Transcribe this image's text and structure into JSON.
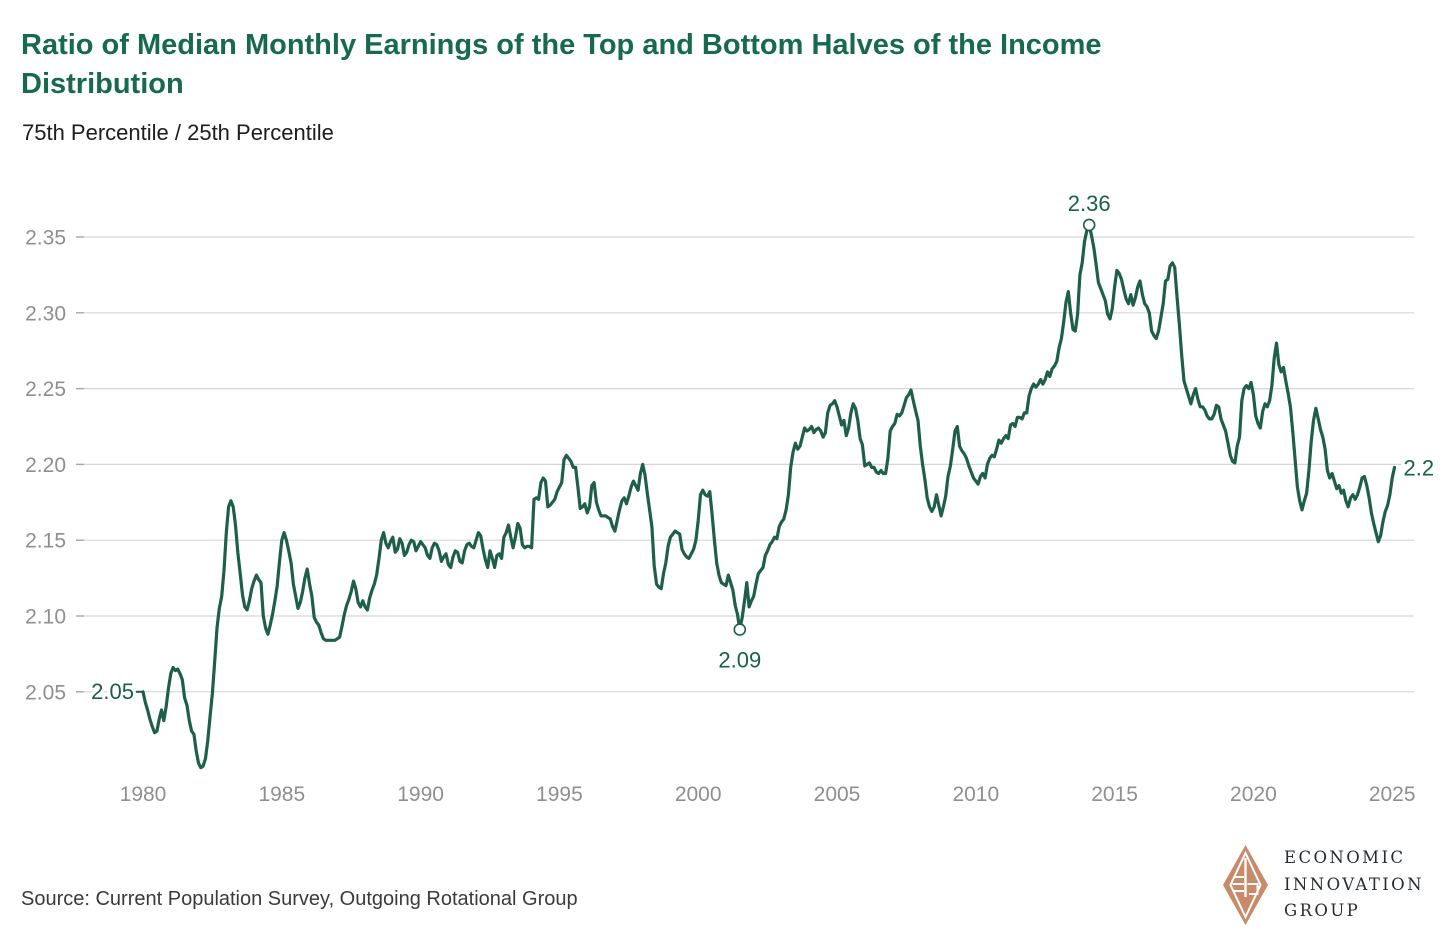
{
  "header": {
    "title": "Ratio of Median Monthly Earnings of the Top and Bottom Halves of the Income Distribution",
    "title_line1": "Ratio of Median Monthly Earnings of the Top and Bottom Halves of the Income",
    "title_line2": "Distribution",
    "subtitle": "75th Percentile / 25th Percentile"
  },
  "footer": {
    "source": "Source: Current Population Survey, Outgoing Rotational Group",
    "logo": {
      "line1": "ECONOMIC",
      "line2": "INNOVATION",
      "line3": "GROUP",
      "icon": "eig-diamond-monogram-icon",
      "diamond_color": "#c98a6a",
      "text_color": "#262c33"
    }
  },
  "colors": {
    "title_green": "#17694f",
    "line_green": "#1e5f4b",
    "annotation_green": "#1a5f4a",
    "gridline": "#d6d6d6",
    "tick_stub": "#a9a9a9",
    "axis_label": "#8f8f8f",
    "subtitle_text": "#1d1d1d",
    "source_text": "#3b3b3b"
  },
  "chart_data": {
    "type": "line",
    "title": "Ratio of Median Monthly Earnings of the Top and Bottom Halves of the Income Distribution",
    "subtitle": "75th Percentile / 25th Percentile",
    "xlabel": "",
    "ylabel": "",
    "grid": "horizontal",
    "legend": "none",
    "x_axis": {
      "ticks": [
        1980,
        1985,
        1990,
        1995,
        2000,
        2005,
        2010,
        2015,
        2020,
        2025
      ]
    },
    "y_axis": {
      "ticks": [
        2.05,
        2.1,
        2.15,
        2.2,
        2.25,
        2.3,
        2.35
      ],
      "ylim": [
        1.99,
        2.39
      ]
    },
    "annotations": [
      {
        "label": "2.05",
        "month_index": 0,
        "value": 2.05,
        "placement": "left",
        "marker": false
      },
      {
        "label": "2.09",
        "month_index": 258,
        "value": 2.091,
        "placement": "below",
        "marker": true
      },
      {
        "label": "2.36",
        "month_index": 409,
        "value": 2.358,
        "placement": "above",
        "marker": true
      },
      {
        "label": "2.2",
        "month_index": 541,
        "value": 2.198,
        "placement": "right",
        "marker": false
      }
    ],
    "series": [
      {
        "name": "75th percentile / 25th percentile ratio",
        "color": "#1e5f4b",
        "start_year": 1980,
        "frequency": "monthly",
        "values": [
          2.05,
          2.043,
          2.038,
          2.032,
          2.027,
          2.023,
          2.024,
          2.032,
          2.038,
          2.031,
          2.04,
          2.052,
          2.062,
          2.066,
          2.064,
          2.065,
          2.062,
          2.058,
          2.046,
          2.041,
          2.031,
          2.024,
          2.022,
          2.011,
          2.003,
          2.0,
          2.001,
          2.006,
          2.018,
          2.034,
          2.049,
          2.07,
          2.092,
          2.105,
          2.113,
          2.13,
          2.155,
          2.172,
          2.176,
          2.172,
          2.16,
          2.142,
          2.128,
          2.114,
          2.106,
          2.104,
          2.11,
          2.118,
          2.123,
          2.127,
          2.124,
          2.122,
          2.1,
          2.092,
          2.088,
          2.094,
          2.101,
          2.11,
          2.12,
          2.136,
          2.15,
          2.155,
          2.15,
          2.143,
          2.135,
          2.121,
          2.113,
          2.105,
          2.109,
          2.116,
          2.125,
          2.131,
          2.121,
          2.113,
          2.099,
          2.096,
          2.094,
          2.089,
          2.085,
          2.084,
          2.084,
          2.084,
          2.084,
          2.084,
          2.085,
          2.086,
          2.093,
          2.101,
          2.107,
          2.111,
          2.116,
          2.123,
          2.118,
          2.109,
          2.106,
          2.11,
          2.106,
          2.104,
          2.112,
          2.117,
          2.121,
          2.127,
          2.138,
          2.15,
          2.155,
          2.148,
          2.145,
          2.149,
          2.152,
          2.142,
          2.144,
          2.151,
          2.148,
          2.14,
          2.142,
          2.147,
          2.15,
          2.149,
          2.143,
          2.146,
          2.149,
          2.147,
          2.145,
          2.14,
          2.138,
          2.145,
          2.148,
          2.147,
          2.143,
          2.136,
          2.139,
          2.141,
          2.134,
          2.132,
          2.139,
          2.143,
          2.142,
          2.136,
          2.135,
          2.143,
          2.147,
          2.148,
          2.146,
          2.145,
          2.15,
          2.155,
          2.153,
          2.144,
          2.137,
          2.132,
          2.143,
          2.138,
          2.132,
          2.14,
          2.141,
          2.138,
          2.152,
          2.155,
          2.16,
          2.152,
          2.145,
          2.152,
          2.161,
          2.158,
          2.147,
          2.145,
          2.146,
          2.146,
          2.145,
          2.177,
          2.178,
          2.177,
          2.188,
          2.191,
          2.189,
          2.172,
          2.173,
          2.175,
          2.177,
          2.182,
          2.185,
          2.188,
          2.203,
          2.206,
          2.204,
          2.202,
          2.198,
          2.198,
          2.185,
          2.171,
          2.172,
          2.174,
          2.168,
          2.172,
          2.186,
          2.188,
          2.175,
          2.17,
          2.166,
          2.166,
          2.166,
          2.165,
          2.164,
          2.159,
          2.156,
          2.163,
          2.17,
          2.176,
          2.178,
          2.174,
          2.179,
          2.185,
          2.189,
          2.186,
          2.183,
          2.194,
          2.2,
          2.193,
          2.181,
          2.17,
          2.159,
          2.133,
          2.121,
          2.119,
          2.118,
          2.128,
          2.135,
          2.146,
          2.152,
          2.154,
          2.156,
          2.155,
          2.154,
          2.144,
          2.141,
          2.139,
          2.138,
          2.141,
          2.144,
          2.15,
          2.163,
          2.18,
          2.183,
          2.18,
          2.179,
          2.182,
          2.167,
          2.15,
          2.135,
          2.127,
          2.122,
          2.121,
          2.12,
          2.127,
          2.122,
          2.117,
          2.107,
          2.101,
          2.091,
          2.099,
          2.11,
          2.122,
          2.106,
          2.11,
          2.113,
          2.121,
          2.128,
          2.13,
          2.132,
          2.14,
          2.143,
          2.147,
          2.149,
          2.152,
          2.151,
          2.159,
          2.162,
          2.164,
          2.17,
          2.18,
          2.198,
          2.208,
          2.214,
          2.21,
          2.212,
          2.218,
          2.224,
          2.222,
          2.223,
          2.225,
          2.221,
          2.223,
          2.224,
          2.222,
          2.218,
          2.221,
          2.234,
          2.239,
          2.24,
          2.242,
          2.238,
          2.232,
          2.226,
          2.229,
          2.219,
          2.224,
          2.234,
          2.24,
          2.237,
          2.229,
          2.217,
          2.213,
          2.199,
          2.2,
          2.201,
          2.198,
          2.198,
          2.195,
          2.194,
          2.196,
          2.194,
          2.194,
          2.204,
          2.222,
          2.225,
          2.227,
          2.233,
          2.232,
          2.234,
          2.239,
          2.244,
          2.246,
          2.249,
          2.242,
          2.235,
          2.229,
          2.212,
          2.2,
          2.19,
          2.178,
          2.172,
          2.169,
          2.172,
          2.18,
          2.173,
          2.166,
          2.172,
          2.179,
          2.192,
          2.199,
          2.21,
          2.222,
          2.225,
          2.212,
          2.209,
          2.207,
          2.204,
          2.199,
          2.195,
          2.191,
          2.189,
          2.187,
          2.192,
          2.194,
          2.191,
          2.2,
          2.204,
          2.206,
          2.205,
          2.21,
          2.216,
          2.214,
          2.217,
          2.219,
          2.217,
          2.226,
          2.227,
          2.225,
          2.231,
          2.231,
          2.23,
          2.234,
          2.234,
          2.245,
          2.25,
          2.253,
          2.251,
          2.253,
          2.256,
          2.253,
          2.256,
          2.261,
          2.258,
          2.263,
          2.265,
          2.268,
          2.277,
          2.283,
          2.294,
          2.307,
          2.314,
          2.3,
          2.289,
          2.288,
          2.299,
          2.325,
          2.333,
          2.347,
          2.354,
          2.358,
          2.351,
          2.343,
          2.332,
          2.32,
          2.316,
          2.312,
          2.308,
          2.299,
          2.296,
          2.303,
          2.317,
          2.328,
          2.326,
          2.322,
          2.315,
          2.309,
          2.306,
          2.312,
          2.305,
          2.31,
          2.317,
          2.321,
          2.312,
          2.306,
          2.304,
          2.3,
          2.288,
          2.285,
          2.283,
          2.288,
          2.297,
          2.306,
          2.321,
          2.322,
          2.331,
          2.333,
          2.33,
          2.31,
          2.292,
          2.272,
          2.255,
          2.25,
          2.245,
          2.24,
          2.246,
          2.25,
          2.243,
          2.238,
          2.238,
          2.236,
          2.232,
          2.23,
          2.23,
          2.233,
          2.239,
          2.238,
          2.23,
          2.226,
          2.222,
          2.214,
          2.206,
          2.202,
          2.201,
          2.212,
          2.218,
          2.242,
          2.25,
          2.252,
          2.25,
          2.254,
          2.246,
          2.232,
          2.227,
          2.224,
          2.235,
          2.24,
          2.238,
          2.242,
          2.252,
          2.27,
          2.28,
          2.266,
          2.261,
          2.264,
          2.255,
          2.247,
          2.238,
          2.222,
          2.204,
          2.185,
          2.176,
          2.17,
          2.176,
          2.181,
          2.196,
          2.215,
          2.229,
          2.237,
          2.23,
          2.223,
          2.218,
          2.21,
          2.196,
          2.191,
          2.194,
          2.189,
          2.184,
          2.186,
          2.181,
          2.183,
          2.176,
          2.172,
          2.178,
          2.18,
          2.177,
          2.18,
          2.185,
          2.191,
          2.192,
          2.186,
          2.178,
          2.168,
          2.161,
          2.155,
          2.149,
          2.153,
          2.162,
          2.169,
          2.173,
          2.18,
          2.191,
          2.198
        ]
      }
    ]
  }
}
